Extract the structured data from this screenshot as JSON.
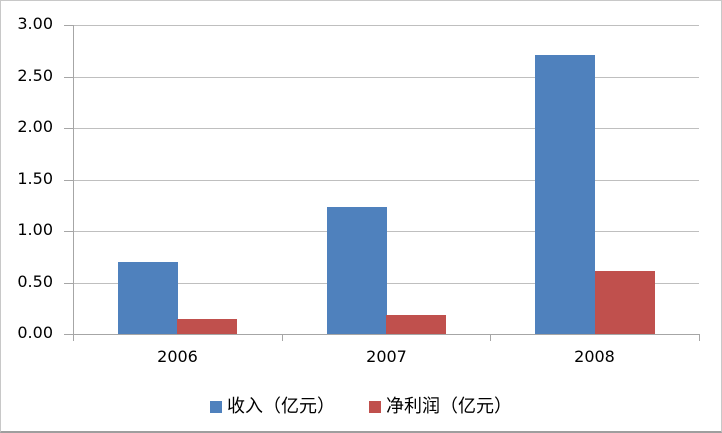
{
  "chart_data": {
    "type": "bar",
    "title": "",
    "xlabel": "",
    "ylabel": "",
    "categories": [
      "2006",
      "2007",
      "2008"
    ],
    "series": [
      {
        "name": "收入（亿元）",
        "color": "#4F81BD",
        "values": [
          0.7,
          1.23,
          2.71
        ]
      },
      {
        "name": "净利润（亿元）",
        "color": "#C0504D",
        "values": [
          0.15,
          0.18,
          0.61
        ]
      }
    ],
    "ylim": [
      0.0,
      3.0
    ],
    "ytick_step": 0.5,
    "ytick_labels": [
      "0.00",
      "0.50",
      "1.00",
      "1.50",
      "2.00",
      "2.50",
      "3.00"
    ],
    "grid": true,
    "legend_position": "bottom"
  },
  "colors": {
    "revenue_series": "#4F81BD",
    "net_profit_series": "#C0504D",
    "gridline": "#BFBFBF",
    "axis": "#A6A6A6",
    "text": "#000000",
    "background": "#FFFFFF",
    "frame_border": "#C8C8C8",
    "frame_border_bottom": "#9E9E9E"
  }
}
